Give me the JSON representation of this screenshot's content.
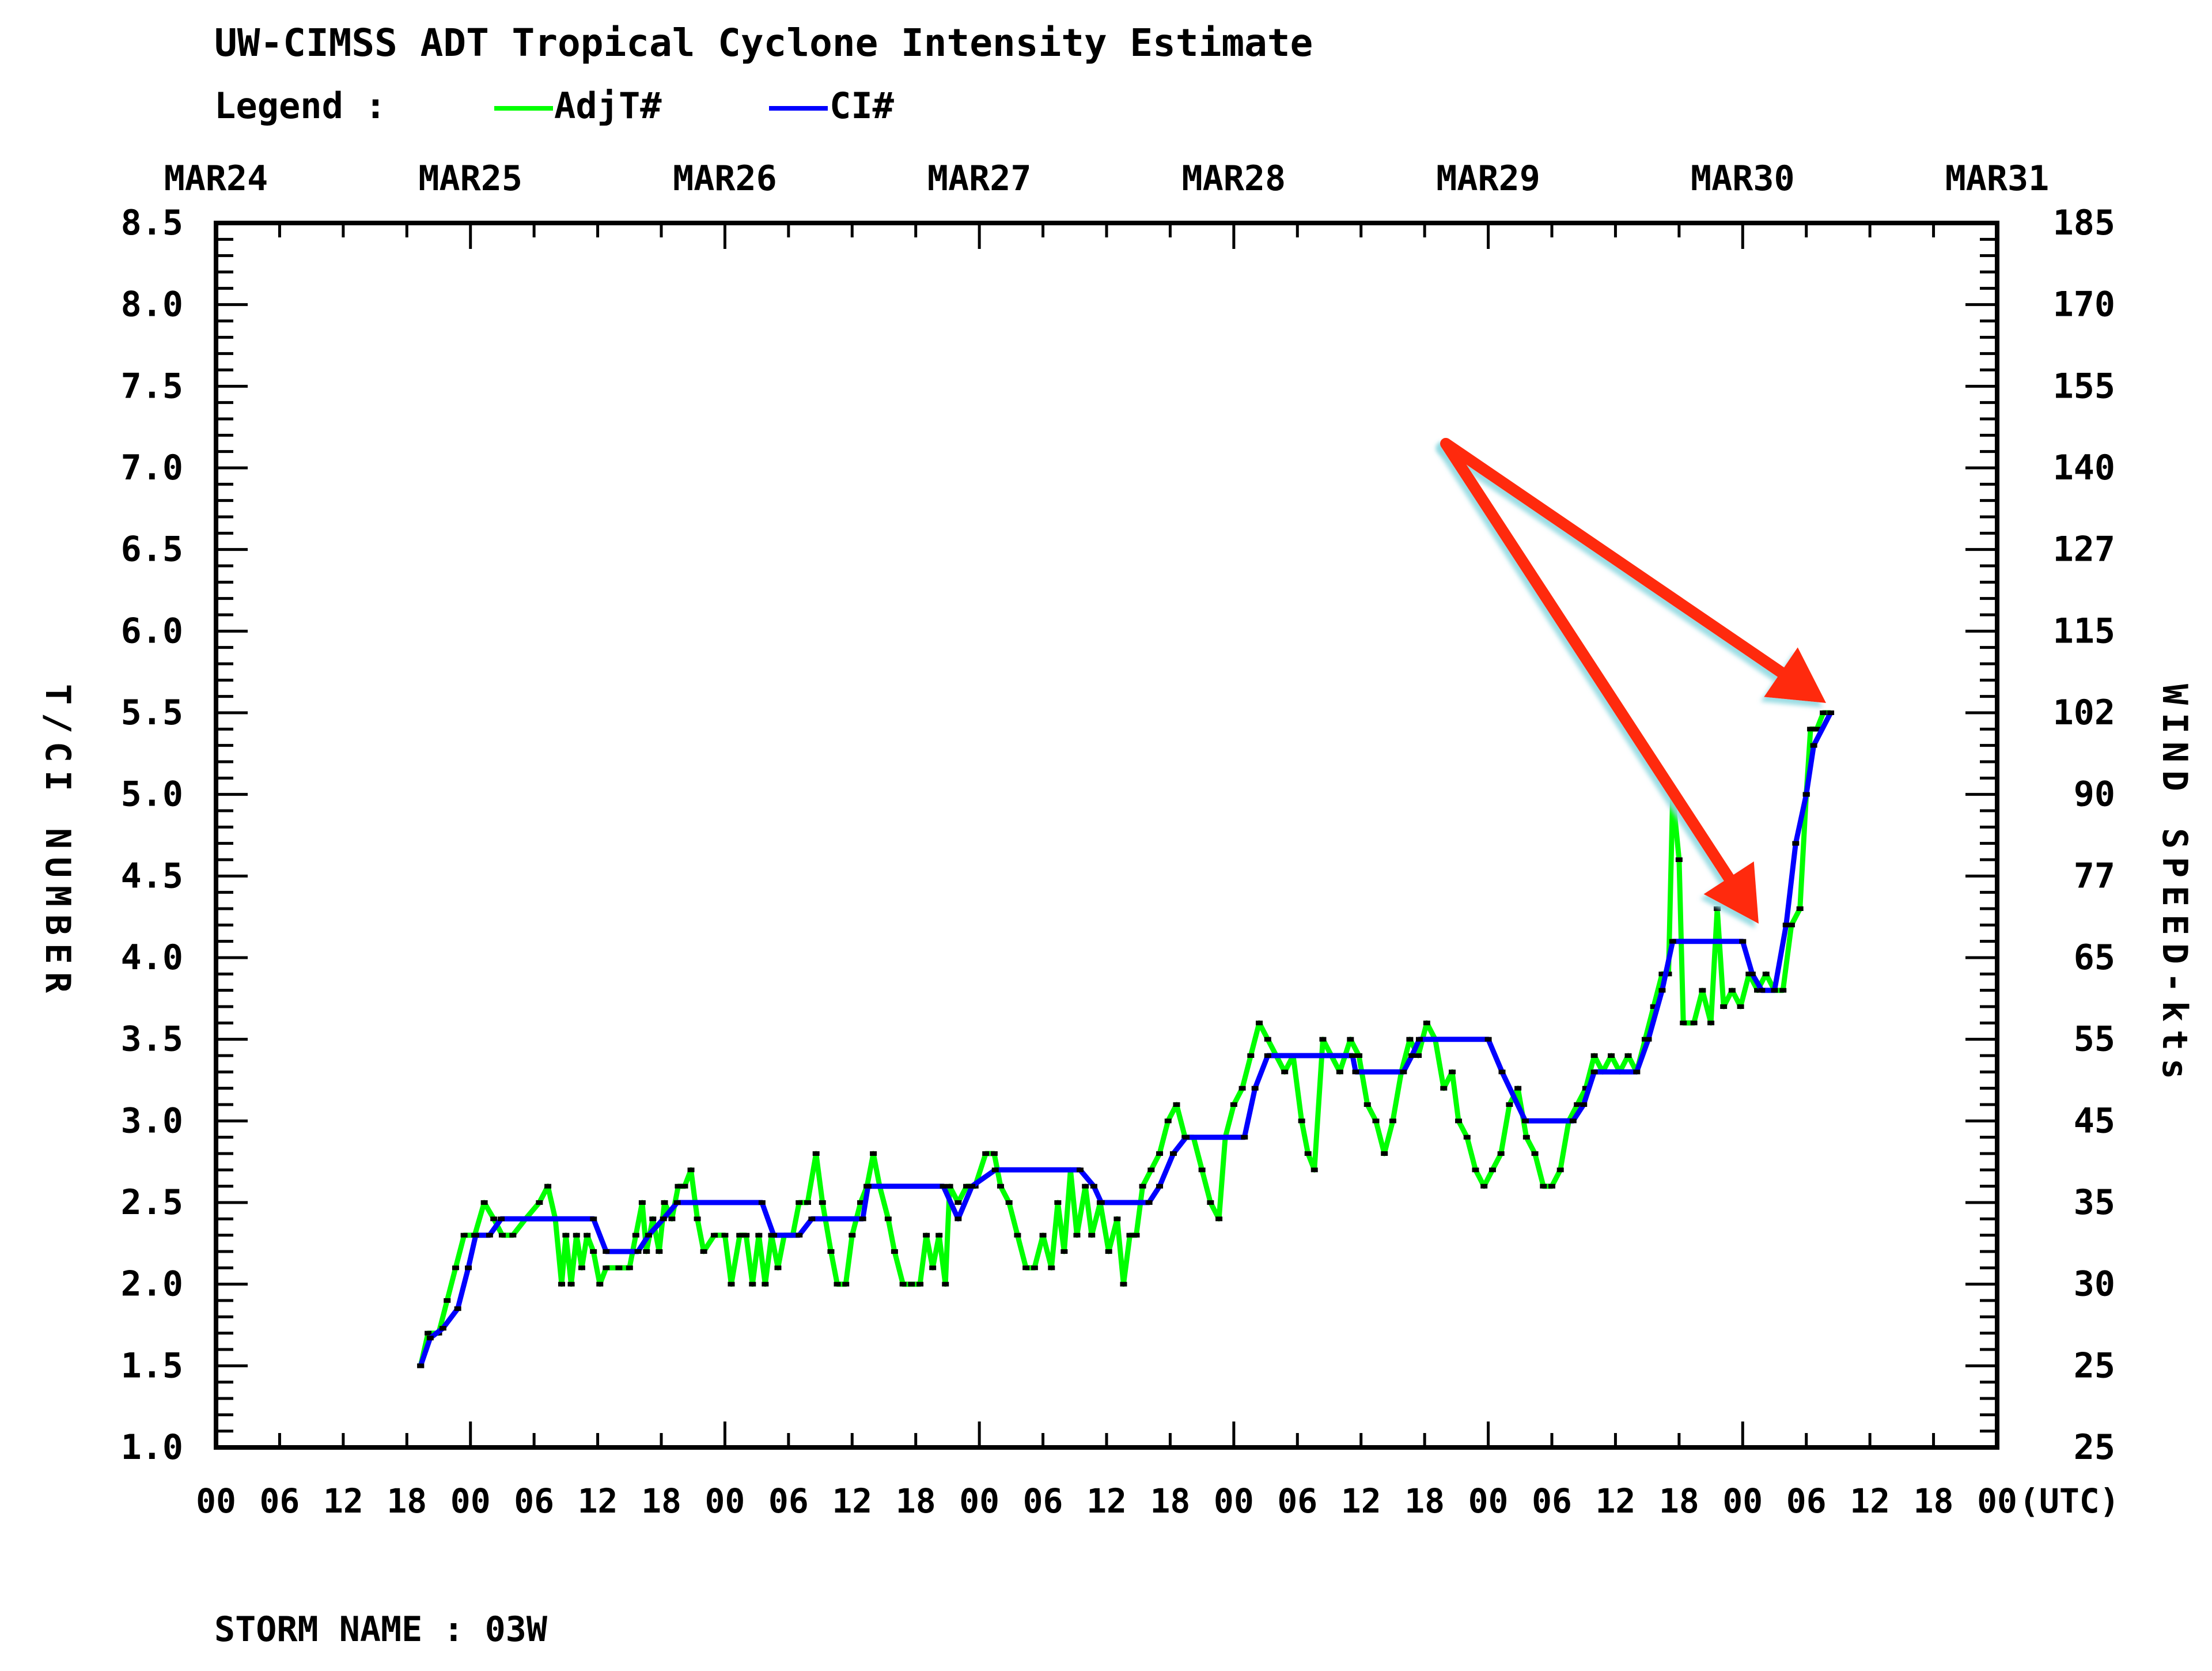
{
  "chart_data": {
    "type": "line",
    "title": "UW-CIMSS ADT Tropical Cyclone Intensity Estimate",
    "legend_label": "Legend :",
    "legend": [
      {
        "name": "AdjT#",
        "color": "#00ff00"
      },
      {
        "name": "CI#",
        "color": "#0000ff"
      }
    ],
    "ylabel_left": "T/CI NUMBER",
    "ylabel_right": "WIND SPEED-kts",
    "xlabel_suffix": "(UTC)",
    "ylim": [
      1.0,
      8.5
    ],
    "yticks_left": [
      "8.5",
      "8.0",
      "7.5",
      "7.0",
      "6.5",
      "6.0",
      "5.5",
      "5.0",
      "4.5",
      "4.0",
      "3.5",
      "3.0",
      "2.5",
      "2.0",
      "1.5",
      "1.0"
    ],
    "yticks_right": [
      "185",
      "170",
      "155",
      "140",
      "127",
      "115",
      "102",
      "90",
      "77",
      "65",
      "55",
      "45",
      "35",
      "30",
      "25",
      "25"
    ],
    "date_labels": [
      "MAR24",
      "MAR25",
      "MAR26",
      "MAR27",
      "MAR28",
      "MAR29",
      "MAR30",
      "MAR31"
    ],
    "hour_labels": [
      "00",
      "06",
      "12",
      "18",
      "00",
      "06",
      "12",
      "18",
      "00",
      "06",
      "12",
      "18",
      "00",
      "06",
      "12",
      "18",
      "00",
      "06",
      "12",
      "18",
      "00",
      "06",
      "12",
      "18",
      "00",
      "06",
      "12",
      "18",
      "00"
    ],
    "x_unit": "hours since MAR24 00UTC",
    "xlim": [
      0,
      168
    ],
    "grid": false,
    "series": [
      {
        "name": "AdjT#",
        "color": "#00ff00",
        "points": [
          [
            19.3,
            1.5
          ],
          [
            20.0,
            1.7
          ],
          [
            21.0,
            1.7
          ],
          [
            21.8,
            1.9
          ],
          [
            22.6,
            2.1
          ],
          [
            23.4,
            2.3
          ],
          [
            24.4,
            2.3
          ],
          [
            25.3,
            2.5
          ],
          [
            26.2,
            2.4
          ],
          [
            27.0,
            2.3
          ],
          [
            28.0,
            2.3
          ],
          [
            29.2,
            2.4
          ],
          [
            30.5,
            2.5
          ],
          [
            31.3,
            2.6
          ],
          [
            32.0,
            2.4
          ],
          [
            32.6,
            2.0
          ],
          [
            33.0,
            2.3
          ],
          [
            33.5,
            2.0
          ],
          [
            34.0,
            2.3
          ],
          [
            34.5,
            2.1
          ],
          [
            35.0,
            2.3
          ],
          [
            35.6,
            2.2
          ],
          [
            36.2,
            2.0
          ],
          [
            36.8,
            2.1
          ],
          [
            38.0,
            2.1
          ],
          [
            39.0,
            2.1
          ],
          [
            39.6,
            2.3
          ],
          [
            40.2,
            2.5
          ],
          [
            40.6,
            2.2
          ],
          [
            41.2,
            2.4
          ],
          [
            41.8,
            2.2
          ],
          [
            42.3,
            2.5
          ],
          [
            43.0,
            2.4
          ],
          [
            43.6,
            2.6
          ],
          [
            44.2,
            2.6
          ],
          [
            44.8,
            2.7
          ],
          [
            45.4,
            2.4
          ],
          [
            46.0,
            2.2
          ],
          [
            47.0,
            2.3
          ],
          [
            48.0,
            2.3
          ],
          [
            48.6,
            2.0
          ],
          [
            49.4,
            2.3
          ],
          [
            50.0,
            2.3
          ],
          [
            50.6,
            2.0
          ],
          [
            51.2,
            2.3
          ],
          [
            51.8,
            2.0
          ],
          [
            52.4,
            2.3
          ],
          [
            53.0,
            2.1
          ],
          [
            53.6,
            2.3
          ],
          [
            54.4,
            2.3
          ],
          [
            55.0,
            2.5
          ],
          [
            55.8,
            2.5
          ],
          [
            56.6,
            2.8
          ],
          [
            57.2,
            2.5
          ],
          [
            58.0,
            2.2
          ],
          [
            58.6,
            2.0
          ],
          [
            59.4,
            2.0
          ],
          [
            60.0,
            2.3
          ],
          [
            60.8,
            2.5
          ],
          [
            61.4,
            2.6
          ],
          [
            62.0,
            2.8
          ],
          [
            62.6,
            2.6
          ],
          [
            63.4,
            2.4
          ],
          [
            64.0,
            2.2
          ],
          [
            64.8,
            2.0
          ],
          [
            65.6,
            2.0
          ],
          [
            66.4,
            2.0
          ],
          [
            67.0,
            2.3
          ],
          [
            67.6,
            2.1
          ],
          [
            68.2,
            2.3
          ],
          [
            68.8,
            2.0
          ],
          [
            69.2,
            2.6
          ],
          [
            70.0,
            2.5
          ],
          [
            70.8,
            2.6
          ],
          [
            71.6,
            2.6
          ],
          [
            72.6,
            2.8
          ],
          [
            73.4,
            2.8
          ],
          [
            74.0,
            2.6
          ],
          [
            74.8,
            2.5
          ],
          [
            75.6,
            2.3
          ],
          [
            76.4,
            2.1
          ],
          [
            77.2,
            2.1
          ],
          [
            78.0,
            2.3
          ],
          [
            78.8,
            2.1
          ],
          [
            79.4,
            2.5
          ],
          [
            80.0,
            2.2
          ],
          [
            80.6,
            2.7
          ],
          [
            81.2,
            2.3
          ],
          [
            82.0,
            2.6
          ],
          [
            82.6,
            2.3
          ],
          [
            83.4,
            2.5
          ],
          [
            84.2,
            2.2
          ],
          [
            85.0,
            2.4
          ],
          [
            85.6,
            2.0
          ],
          [
            86.2,
            2.3
          ],
          [
            86.8,
            2.3
          ],
          [
            87.4,
            2.6
          ],
          [
            88.2,
            2.7
          ],
          [
            89.0,
            2.8
          ],
          [
            89.8,
            3.0
          ],
          [
            90.6,
            3.1
          ],
          [
            91.4,
            2.9
          ],
          [
            92.2,
            2.9
          ],
          [
            93.0,
            2.7
          ],
          [
            93.8,
            2.5
          ],
          [
            94.6,
            2.4
          ],
          [
            95.2,
            2.9
          ],
          [
            96.0,
            3.1
          ],
          [
            96.8,
            3.2
          ],
          [
            97.6,
            3.4
          ],
          [
            98.4,
            3.6
          ],
          [
            99.2,
            3.5
          ],
          [
            100.0,
            3.4
          ],
          [
            100.8,
            3.3
          ],
          [
            101.6,
            3.4
          ],
          [
            102.4,
            3.0
          ],
          [
            103.0,
            2.8
          ],
          [
            103.6,
            2.7
          ],
          [
            104.4,
            3.5
          ],
          [
            105.2,
            3.4
          ],
          [
            106.0,
            3.3
          ],
          [
            107.0,
            3.5
          ],
          [
            107.8,
            3.4
          ],
          [
            108.6,
            3.1
          ],
          [
            109.4,
            3.0
          ],
          [
            110.2,
            2.8
          ],
          [
            111.0,
            3.0
          ],
          [
            111.8,
            3.3
          ],
          [
            112.6,
            3.5
          ],
          [
            113.4,
            3.4
          ],
          [
            114.2,
            3.6
          ],
          [
            115.0,
            3.5
          ],
          [
            115.8,
            3.2
          ],
          [
            116.6,
            3.3
          ],
          [
            117.2,
            3.0
          ],
          [
            118.0,
            2.9
          ],
          [
            118.8,
            2.7
          ],
          [
            119.6,
            2.6
          ],
          [
            120.4,
            2.7
          ],
          [
            121.2,
            2.8
          ],
          [
            122.0,
            3.1
          ],
          [
            122.8,
            3.2
          ],
          [
            123.6,
            2.9
          ],
          [
            124.4,
            2.8
          ],
          [
            125.2,
            2.6
          ],
          [
            126.0,
            2.6
          ],
          [
            126.8,
            2.7
          ],
          [
            127.6,
            3.0
          ],
          [
            128.4,
            3.1
          ],
          [
            129.2,
            3.2
          ],
          [
            130.0,
            3.4
          ],
          [
            130.8,
            3.3
          ],
          [
            131.6,
            3.4
          ],
          [
            132.4,
            3.3
          ],
          [
            133.2,
            3.4
          ],
          [
            134.0,
            3.3
          ],
          [
            134.8,
            3.5
          ],
          [
            135.6,
            3.7
          ],
          [
            136.4,
            3.9
          ],
          [
            137.0,
            3.9
          ],
          [
            137.4,
            5.0
          ],
          [
            138.0,
            4.6
          ],
          [
            138.4,
            3.6
          ],
          [
            139.4,
            3.6
          ],
          [
            140.2,
            3.8
          ],
          [
            141.0,
            3.6
          ],
          [
            141.6,
            4.3
          ],
          [
            142.2,
            3.7
          ],
          [
            143.0,
            3.8
          ],
          [
            143.8,
            3.7
          ],
          [
            144.6,
            3.9
          ],
          [
            145.4,
            3.8
          ],
          [
            146.2,
            3.9
          ],
          [
            147.0,
            3.8
          ],
          [
            147.8,
            3.8
          ],
          [
            148.6,
            4.2
          ],
          [
            149.4,
            4.3
          ],
          [
            150.0,
            5.0
          ],
          [
            150.4,
            5.4
          ],
          [
            151.0,
            5.4
          ],
          [
            151.6,
            5.5
          ],
          [
            152.3,
            5.5
          ]
        ]
      },
      {
        "name": "CI#",
        "color": "#0000ff",
        "points": [
          [
            19.3,
            1.5
          ],
          [
            20.2,
            1.67
          ],
          [
            21.4,
            1.73
          ],
          [
            22.8,
            1.85
          ],
          [
            23.8,
            2.1
          ],
          [
            24.5,
            2.3
          ],
          [
            25.8,
            2.3
          ],
          [
            26.9,
            2.4
          ],
          [
            35.6,
            2.4
          ],
          [
            36.8,
            2.2
          ],
          [
            39.8,
            2.2
          ],
          [
            40.8,
            2.3
          ],
          [
            42.2,
            2.4
          ],
          [
            43.5,
            2.5
          ],
          [
            51.5,
            2.5
          ],
          [
            52.6,
            2.3
          ],
          [
            55.0,
            2.3
          ],
          [
            56.2,
            2.4
          ],
          [
            61.0,
            2.4
          ],
          [
            61.5,
            2.6
          ],
          [
            68.6,
            2.6
          ],
          [
            70.0,
            2.4
          ],
          [
            71.3,
            2.6
          ],
          [
            73.5,
            2.7
          ],
          [
            81.5,
            2.7
          ],
          [
            82.8,
            2.6
          ],
          [
            83.5,
            2.5
          ],
          [
            88.0,
            2.5
          ],
          [
            89.0,
            2.6
          ],
          [
            90.3,
            2.8
          ],
          [
            91.5,
            2.9
          ],
          [
            97.0,
            2.9
          ],
          [
            98.0,
            3.2
          ],
          [
            99.2,
            3.4
          ],
          [
            107.2,
            3.4
          ],
          [
            107.5,
            3.3
          ],
          [
            112.0,
            3.3
          ],
          [
            112.8,
            3.4
          ],
          [
            113.5,
            3.5
          ],
          [
            120.0,
            3.5
          ],
          [
            121.3,
            3.3
          ],
          [
            123.5,
            3.0
          ],
          [
            128.0,
            3.0
          ],
          [
            129.0,
            3.1
          ],
          [
            130.0,
            3.3
          ],
          [
            134.0,
            3.3
          ],
          [
            135.1,
            3.5
          ],
          [
            136.4,
            3.8
          ],
          [
            137.4,
            4.1
          ],
          [
            144.0,
            4.1
          ],
          [
            144.9,
            3.9
          ],
          [
            145.8,
            3.8
          ],
          [
            147.0,
            3.8
          ],
          [
            148.1,
            4.2
          ],
          [
            149.0,
            4.7
          ],
          [
            150.0,
            5.0
          ],
          [
            150.7,
            5.3
          ],
          [
            152.3,
            5.5
          ]
        ]
      }
    ],
    "annotations": [
      {
        "type": "arrow",
        "color": "#ff2a10",
        "from": [
          2510,
          770
        ],
        "to": [
          3170,
          1220
        ]
      },
      {
        "type": "arrow",
        "color": "#ff2a10",
        "from": [
          2510,
          770
        ],
        "to": [
          3053,
          1603
        ]
      }
    ]
  },
  "footer": {
    "storm_name_label": "STORM NAME : 03W"
  }
}
